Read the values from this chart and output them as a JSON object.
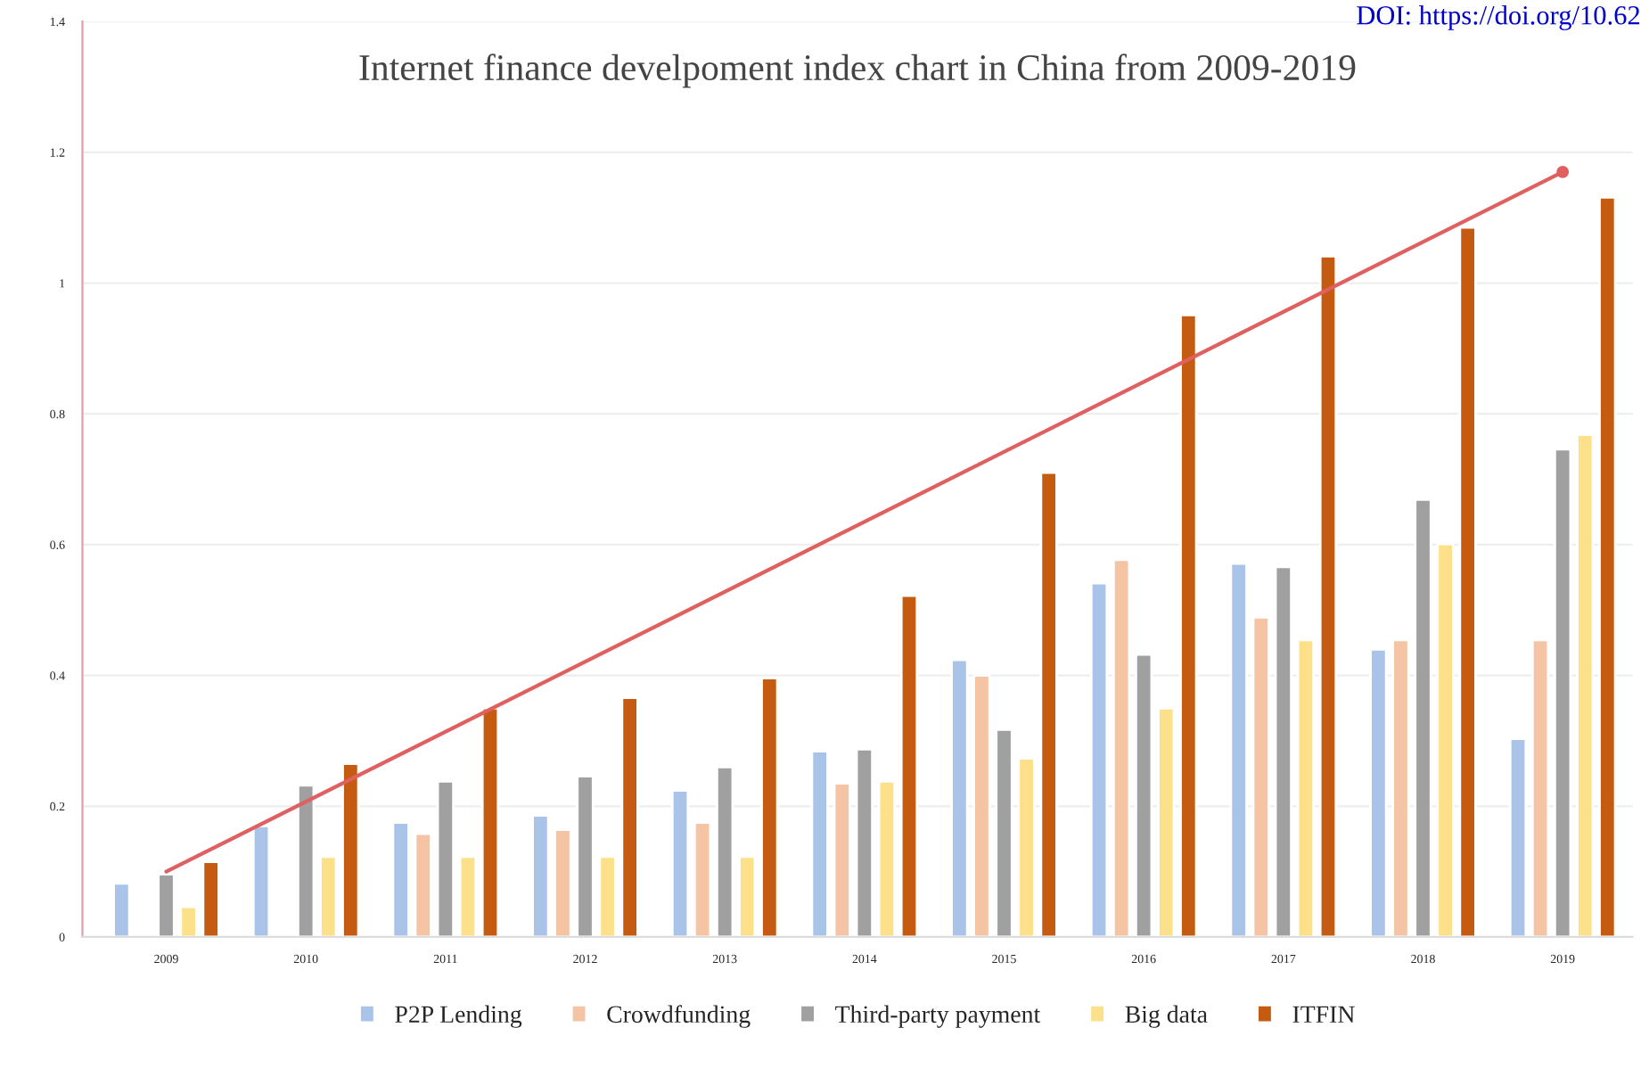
{
  "chart_data": {
    "type": "bar",
    "title": "Internet finance develpoment index chart in China from 2009-2019",
    "categories": [
      "2009",
      "2010",
      "2011",
      "2012",
      "2013",
      "2014",
      "2015",
      "2016",
      "2017",
      "2018",
      "2019"
    ],
    "series": [
      {
        "name": "P2P Lending",
        "color": "#a9c4e8",
        "values": [
          0.082,
          0.17,
          0.175,
          0.186,
          0.224,
          0.284,
          0.424,
          0.541,
          0.571,
          0.44,
          0.303
        ]
      },
      {
        "name": "Crowdfunding",
        "color": "#f4c4a4",
        "values": [
          null,
          null,
          0.158,
          0.164,
          0.175,
          0.235,
          0.4,
          0.577,
          0.489,
          0.454,
          0.454
        ]
      },
      {
        "name": "Third-party payment",
        "color": "#a0a0a0",
        "values": [
          0.096,
          0.232,
          0.238,
          0.246,
          0.26,
          0.287,
          0.317,
          0.432,
          0.566,
          0.669,
          0.746
        ]
      },
      {
        "name": "Big data",
        "color": "#fde08a",
        "values": [
          0.046,
          0.123,
          0.123,
          0.123,
          0.123,
          0.238,
          0.273,
          0.35,
          0.454,
          0.601,
          0.768
        ]
      },
      {
        "name": "ITFIN",
        "color": "#c55a11",
        "values": [
          0.115,
          0.265,
          0.35,
          0.366,
          0.396,
          0.522,
          0.71,
          0.951,
          1.041,
          1.085,
          1.131
        ]
      },
      {
        "type": "line",
        "color": "#e06060",
        "values": [
          0.1,
          null,
          null,
          null,
          null,
          null,
          null,
          null,
          null,
          null,
          1.17
        ],
        "marker": "circle"
      }
    ],
    "ylim": [
      0,
      1.4
    ],
    "yticks": [
      0,
      0.2,
      0.4,
      0.6,
      0.8,
      1,
      1.2,
      1.4
    ],
    "grid": "y",
    "legend": "bottom",
    "annotations": [
      "DOI: https://doi.org/10.62"
    ]
  }
}
